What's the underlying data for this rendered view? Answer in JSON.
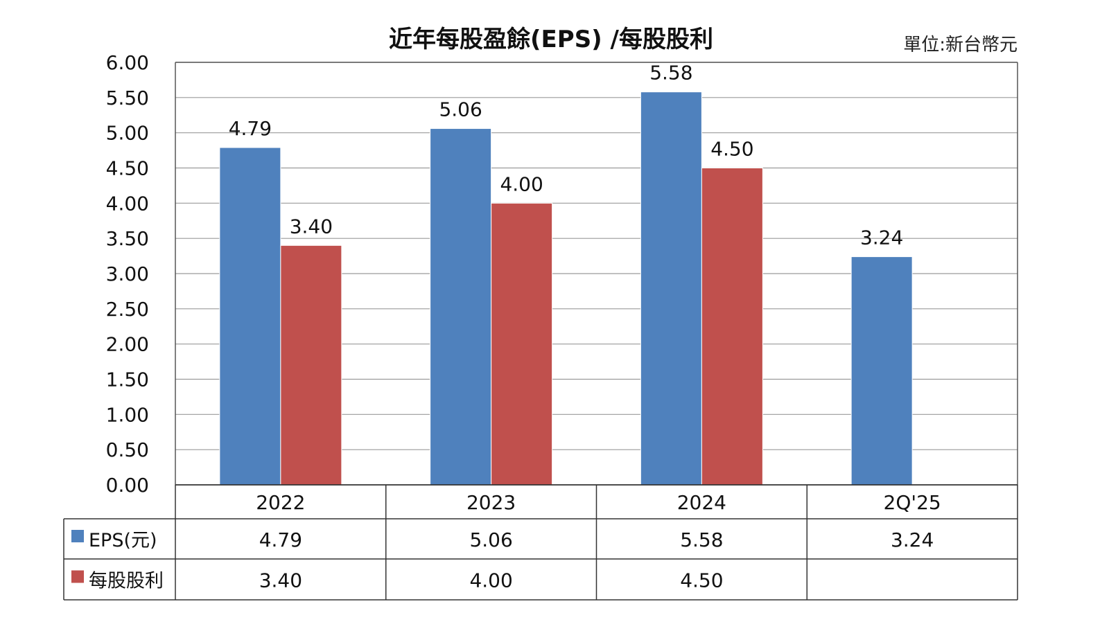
{
  "chart_data": {
    "type": "bar",
    "title": "近年每股盈餘(EPS) /每股股利",
    "unit_note": "單位:新台幣元",
    "categories": [
      "2022",
      "2023",
      "2024",
      "2Q'25"
    ],
    "series": [
      {
        "name": "EPS(元)",
        "color": "#4F81BD",
        "values": [
          4.79,
          5.06,
          5.58,
          3.24
        ],
        "labels": [
          "4.79",
          "5.06",
          "5.58",
          "3.24"
        ]
      },
      {
        "name": "每股股利",
        "color": "#C0504D",
        "values": [
          3.4,
          4.0,
          4.5,
          null
        ],
        "labels": [
          "3.40",
          "4.00",
          "4.50",
          ""
        ]
      }
    ],
    "ylim": [
      0,
      6
    ],
    "yticks": [
      "0.00",
      "0.50",
      "1.00",
      "1.50",
      "2.00",
      "2.50",
      "3.00",
      "3.50",
      "4.00",
      "4.50",
      "5.00",
      "5.50",
      "6.00"
    ],
    "grid": true,
    "legend": "data-table"
  }
}
